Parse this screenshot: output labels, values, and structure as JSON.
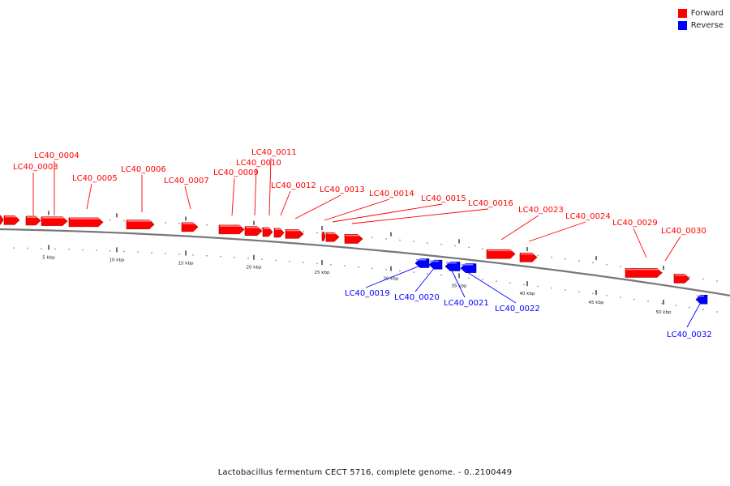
{
  "colors": {
    "forward": "#ff0000",
    "reverse": "#0000ff",
    "backbone": "#777777",
    "tick": "#222222"
  },
  "legend": [
    {
      "label": "Forward",
      "color": "#ff0000"
    },
    {
      "label": "Reverse",
      "color": "#0000ff"
    }
  ],
  "caption": "Lactobacillus fermentum CECT 5716, complete genome. - 0..2100449",
  "scale_unit": "kbp",
  "scale_labels": [
    "5 kbp",
    "10 kbp",
    "15 kbp",
    "20 kbp",
    "25 kbp",
    "30 kbp",
    "35 kbp",
    "40 kbp",
    "45 kbp",
    "50 kbp"
  ],
  "genes": [
    {
      "id": "LC40_0003",
      "strand": "forward"
    },
    {
      "id": "LC40_0004",
      "strand": "forward"
    },
    {
      "id": "LC40_0005",
      "strand": "forward"
    },
    {
      "id": "LC40_0006",
      "strand": "forward"
    },
    {
      "id": "LC40_0007",
      "strand": "forward"
    },
    {
      "id": "LC40_0009",
      "strand": "forward"
    },
    {
      "id": "LC40_0010",
      "strand": "forward"
    },
    {
      "id": "LC40_0011",
      "strand": "forward"
    },
    {
      "id": "LC40_0012",
      "strand": "forward"
    },
    {
      "id": "LC40_0013",
      "strand": "forward"
    },
    {
      "id": "LC40_0014",
      "strand": "forward"
    },
    {
      "id": "LC40_0015",
      "strand": "forward"
    },
    {
      "id": "LC40_0016",
      "strand": "forward"
    },
    {
      "id": "LC40_0019",
      "strand": "reverse"
    },
    {
      "id": "LC40_0020",
      "strand": "reverse"
    },
    {
      "id": "LC40_0021",
      "strand": "reverse"
    },
    {
      "id": "LC40_0022",
      "strand": "reverse"
    },
    {
      "id": "LC40_0023",
      "strand": "forward"
    },
    {
      "id": "LC40_0024",
      "strand": "forward"
    },
    {
      "id": "LC40_0029",
      "strand": "forward"
    },
    {
      "id": "LC40_0030",
      "strand": "forward"
    },
    {
      "id": "LC40_0032",
      "strand": "reverse"
    }
  ]
}
